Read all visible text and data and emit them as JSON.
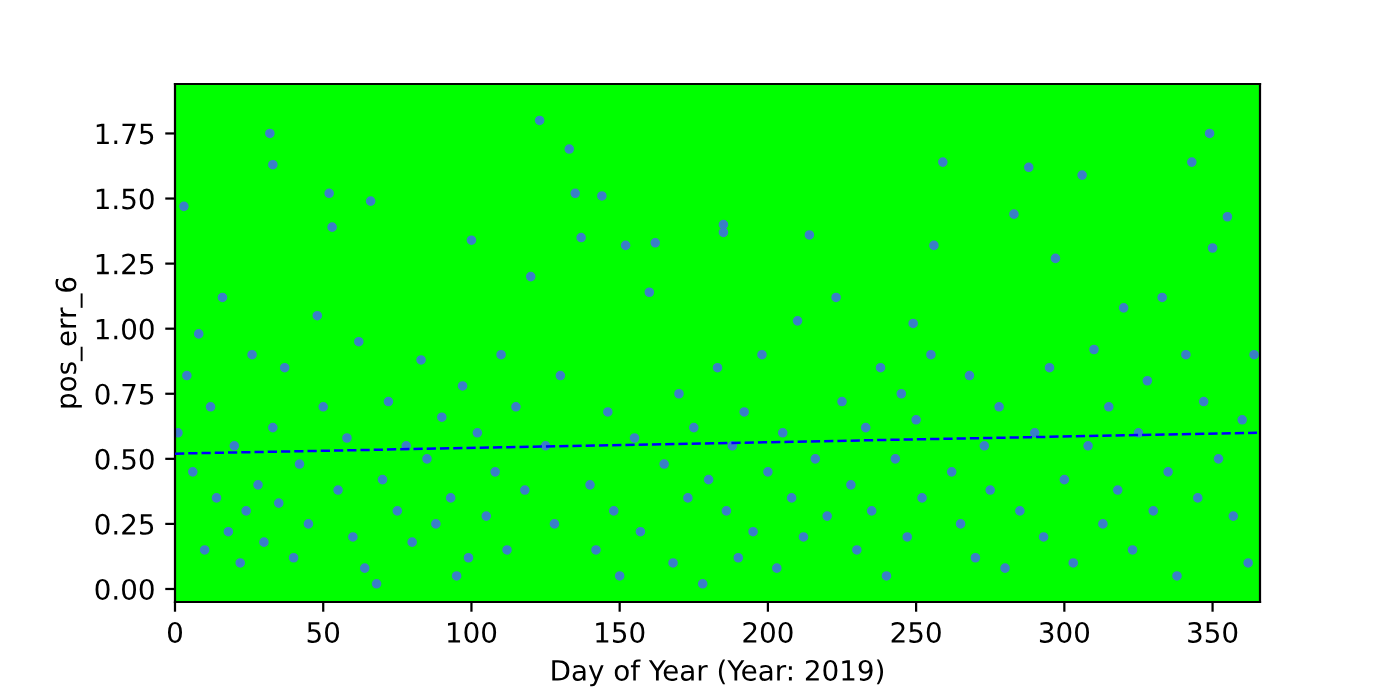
{
  "chart_data": {
    "type": "scatter",
    "xlabel": "Day of Year (Year: 2019)",
    "ylabel": "pos_err_6",
    "xlim": [
      0,
      366
    ],
    "ylim": [
      -0.05,
      1.94
    ],
    "xticks": [
      0,
      50,
      100,
      150,
      200,
      250,
      300,
      350
    ],
    "yticks": [
      {
        "value": 0,
        "label": "0.00"
      },
      0.25,
      {
        "value": 0.5,
        "label": "0.50"
      },
      0.75,
      {
        "value": 1,
        "label": "1.00"
      },
      1.25,
      {
        "value": 1.5,
        "label": "1.50"
      },
      1.75
    ],
    "grid": false,
    "legend": false,
    "series": [
      {
        "marker": "circle",
        "color": "#3a7fc8",
        "x": [
          1,
          3,
          4,
          6,
          8,
          10,
          12,
          14,
          16,
          18,
          20,
          22,
          24,
          26,
          28,
          30,
          32,
          33,
          33,
          35,
          37,
          40,
          42,
          45,
          48,
          50,
          52,
          53,
          55,
          58,
          60,
          62,
          64,
          66,
          68,
          70,
          72,
          75,
          78,
          80,
          83,
          85,
          88,
          90,
          93,
          95,
          97,
          99,
          100,
          102,
          105,
          108,
          110,
          112,
          115,
          118,
          120,
          123,
          125,
          128,
          130,
          133,
          135,
          137,
          140,
          142,
          144,
          146,
          148,
          150,
          152,
          155,
          157,
          160,
          162,
          165,
          168,
          170,
          173,
          175,
          178,
          180,
          183,
          185,
          185,
          186,
          188,
          190,
          192,
          195,
          198,
          200,
          203,
          205,
          208,
          210,
          212,
          214,
          216,
          220,
          223,
          225,
          228,
          230,
          233,
          235,
          238,
          240,
          243,
          245,
          247,
          249,
          250,
          252,
          255,
          256,
          259,
          262,
          265,
          268,
          270,
          273,
          275,
          278,
          280,
          283,
          285,
          288,
          290,
          293,
          295,
          297,
          300,
          303,
          306,
          308,
          310,
          313,
          315,
          318,
          320,
          323,
          325,
          328,
          330,
          333,
          335,
          338,
          341,
          343,
          345,
          347,
          349,
          350,
          352,
          355,
          357,
          360,
          362,
          364
        ],
        "values": [
          0.6,
          1.47,
          0.82,
          0.45,
          0.98,
          0.15,
          0.7,
          0.35,
          1.12,
          0.22,
          0.55,
          0.1,
          0.3,
          0.9,
          0.4,
          0.18,
          1.75,
          1.63,
          0.62,
          0.33,
          0.85,
          0.12,
          0.48,
          0.25,
          1.05,
          0.7,
          1.52,
          1.39,
          0.38,
          0.58,
          0.2,
          0.95,
          0.08,
          1.49,
          0.02,
          0.42,
          0.72,
          0.3,
          0.55,
          0.18,
          0.88,
          0.5,
          0.25,
          0.66,
          0.35,
          0.05,
          0.78,
          0.12,
          1.34,
          0.6,
          0.28,
          0.45,
          0.9,
          0.15,
          0.7,
          0.38,
          1.2,
          1.8,
          0.55,
          0.25,
          0.82,
          1.69,
          1.52,
          1.35,
          0.4,
          0.15,
          1.51,
          0.68,
          0.3,
          0.05,
          1.32,
          0.58,
          0.22,
          1.14,
          1.33,
          0.48,
          0.1,
          0.75,
          0.35,
          0.62,
          0.02,
          0.42,
          0.85,
          1.4,
          1.37,
          0.3,
          0.55,
          0.12,
          0.68,
          0.22,
          0.9,
          0.45,
          0.08,
          0.6,
          0.35,
          1.03,
          0.2,
          1.36,
          0.5,
          0.28,
          1.12,
          0.72,
          0.4,
          0.15,
          0.62,
          0.3,
          0.85,
          0.05,
          0.5,
          0.75,
          0.2,
          1.02,
          0.65,
          0.35,
          0.9,
          1.32,
          1.64,
          0.45,
          0.25,
          0.82,
          0.12,
          0.55,
          0.38,
          0.7,
          0.08,
          1.44,
          0.3,
          1.62,
          0.6,
          0.2,
          0.85,
          1.27,
          0.42,
          0.1,
          1.59,
          0.55,
          0.92,
          0.25,
          0.7,
          0.38,
          1.08,
          0.15,
          0.6,
          0.8,
          0.3,
          1.12,
          0.45,
          0.05,
          0.9,
          1.64,
          0.35,
          0.72,
          1.75,
          1.31,
          0.5,
          1.43,
          0.28,
          0.65,
          0.1,
          0.9
        ]
      },
      {
        "type": "line",
        "color": "#0000ff",
        "line_style": "dashed",
        "x": [
          0,
          365
        ],
        "values": [
          0.52,
          0.6
        ]
      }
    ]
  }
}
